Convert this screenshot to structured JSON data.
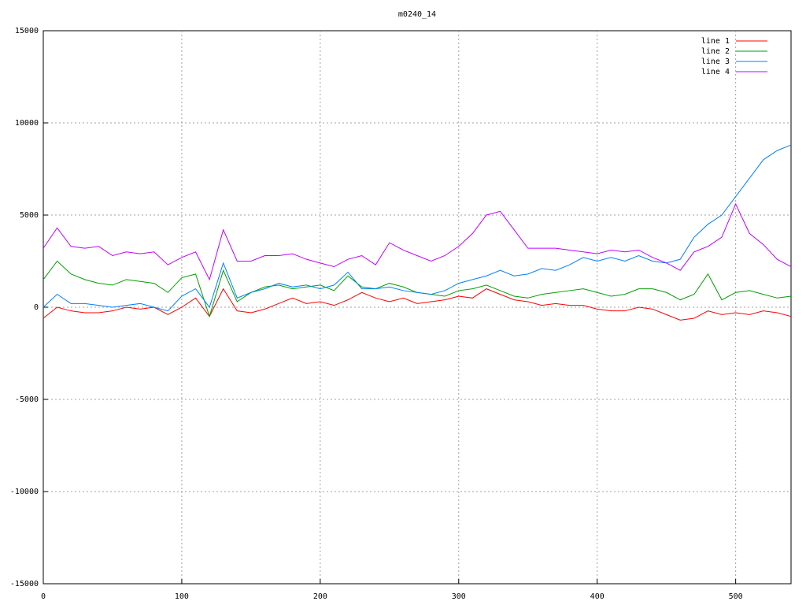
{
  "chart_data": {
    "type": "line",
    "title": "m0240_14",
    "x": [
      0,
      10,
      20,
      30,
      40,
      50,
      60,
      70,
      80,
      90,
      100,
      110,
      120,
      130,
      140,
      150,
      160,
      170,
      180,
      190,
      200,
      210,
      220,
      230,
      240,
      250,
      260,
      270,
      280,
      290,
      300,
      310,
      320,
      330,
      340,
      350,
      360,
      370,
      380,
      390,
      400,
      410,
      420,
      430,
      440,
      450,
      460,
      470,
      480,
      490,
      500,
      510,
      520,
      530,
      540
    ],
    "series": [
      {
        "name": "line 1",
        "color": "#ff0000",
        "values": [
          -600,
          0,
          -200,
          -300,
          -300,
          -200,
          0,
          -100,
          0,
          -400,
          0,
          500,
          -500,
          1000,
          -200,
          -300,
          -100,
          200,
          500,
          200,
          300,
          100,
          400,
          800,
          500,
          300,
          500,
          200,
          300,
          400,
          600,
          500,
          1000,
          700,
          400,
          300,
          100,
          200,
          100,
          100,
          -100,
          -200,
          -200,
          0,
          -100,
          -400,
          -700,
          -600,
          -200,
          -400,
          -300,
          -400,
          -200,
          -300,
          -500
        ]
      },
      {
        "name": "line 2",
        "color": "#00a000",
        "values": [
          1500,
          2500,
          1800,
          1500,
          1300,
          1200,
          1500,
          1400,
          1300,
          800,
          1600,
          1800,
          -500,
          2000,
          300,
          800,
          1100,
          1200,
          1000,
          1100,
          1200,
          900,
          1700,
          1100,
          1000,
          1300,
          1100,
          800,
          700,
          600,
          900,
          1000,
          1200,
          900,
          600,
          500,
          700,
          800,
          900,
          1000,
          800,
          600,
          700,
          1000,
          1000,
          800,
          400,
          700,
          1800,
          400,
          800,
          900,
          700,
          500,
          600
        ]
      },
      {
        "name": "line 3",
        "color": "#0080ff",
        "values": [
          0,
          700,
          200,
          200,
          100,
          0,
          100,
          200,
          0,
          -200,
          600,
          1000,
          0,
          2400,
          500,
          800,
          1000,
          1300,
          1100,
          1200,
          1000,
          1200,
          1900,
          1000,
          1000,
          1100,
          900,
          800,
          700,
          900,
          1300,
          1500,
          1700,
          2000,
          1700,
          1800,
          2100,
          2000,
          2300,
          2700,
          2500,
          2700,
          2500,
          2800,
          2500,
          2400,
          2600,
          3800,
          4500,
          5000,
          6000,
          7000,
          8000,
          8500,
          8800
        ]
      },
      {
        "name": "line 4",
        "color": "#c000ff",
        "values": [
          3200,
          4300,
          3300,
          3200,
          3300,
          2800,
          3000,
          2900,
          3000,
          2300,
          2700,
          3000,
          1500,
          4200,
          2500,
          2500,
          2800,
          2800,
          2900,
          2600,
          2400,
          2200,
          2600,
          2800,
          2300,
          3500,
          3100,
          2800,
          2500,
          2800,
          3300,
          4000,
          5000,
          5200,
          4200,
          3200,
          3200,
          3200,
          3100,
          3000,
          2900,
          3100,
          3000,
          3100,
          2700,
          2400,
          2000,
          3000,
          3300,
          3800,
          5600,
          4000,
          3400,
          2600,
          2200
        ]
      }
    ],
    "xlim": [
      0,
      540
    ],
    "xticks": [
      0,
      100,
      200,
      300,
      400,
      500
    ],
    "ylim": [
      -15000,
      15000
    ],
    "yticks": [
      -15000,
      -10000,
      -5000,
      0,
      5000,
      10000,
      15000
    ],
    "grid": true,
    "legend": "top-right"
  }
}
